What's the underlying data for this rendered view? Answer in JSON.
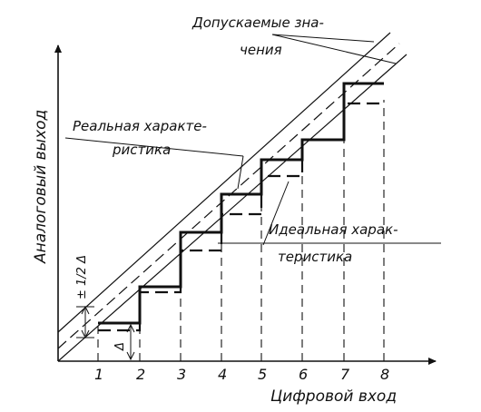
{
  "labels": {
    "y_axis": "Аналоговый выход",
    "x_axis": "Цифровой вход",
    "allowed_values_line1": "Допускаемые зна-",
    "allowed_values_line2": "чения",
    "real_line1": "Реальная характе-",
    "real_line2": "ристика",
    "ideal_line1": "Идеальная харак-",
    "ideal_line2": "теристика",
    "half_delta": "± 1/2 Δ",
    "delta": "Δ"
  },
  "x_ticks": [
    "1",
    "2",
    "3",
    "4",
    "5",
    "6",
    "7",
    "8"
  ]
}
